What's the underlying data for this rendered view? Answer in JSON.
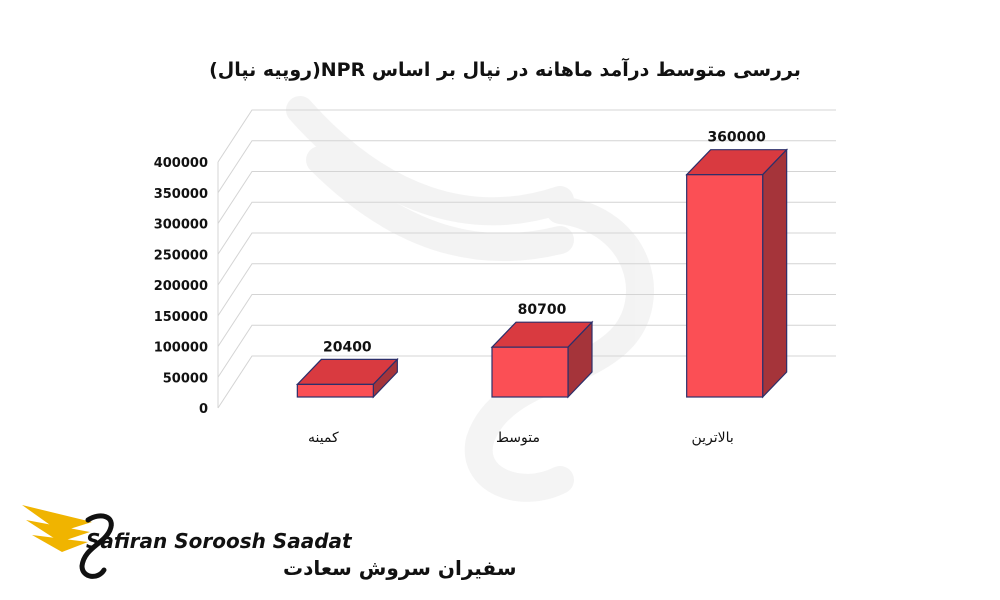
{
  "chart_data": {
    "type": "bar",
    "title": "بررسی متوسط درآمد ماهانه در نپال بر اساس  NPR(روپیه نپال)",
    "categories": [
      "کمینه",
      "متوسط",
      "بالاترین"
    ],
    "values": [
      20400,
      80700,
      360000
    ],
    "ylim": [
      0,
      400000
    ],
    "yticks": [
      0,
      50000,
      100000,
      150000,
      200000,
      250000,
      300000,
      350000,
      400000
    ],
    "data_labels": [
      "20400",
      "80700",
      "360000"
    ],
    "grid": true,
    "style": "3d",
    "colors": {
      "bar_front": "#fb4f55",
      "bar_top": "#d93a40",
      "bar_side": "#a5343a",
      "bar_stroke": "#2c2f6a"
    }
  },
  "logo": {
    "name_en": "Safiran Soroosh Saadat",
    "name_fa": "سفیران سروش سعادت",
    "colors": {
      "wing": "#f0b400",
      "text": "#111111"
    }
  }
}
